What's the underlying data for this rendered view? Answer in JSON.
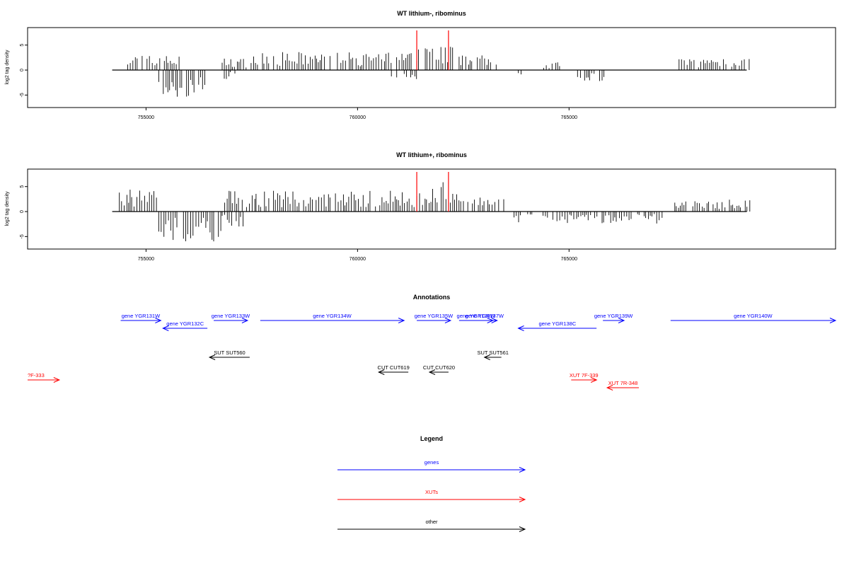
{
  "colors": {
    "gene": "#0000ff",
    "xut": "#ff0000",
    "other": "#000000",
    "highlight": "#ff0000"
  },
  "chart_data": [
    {
      "type": "bar",
      "title": "WT lithium-, ribominus",
      "ylabel": "log2 tag density",
      "x_ticks": [
        755000,
        760000,
        765000
      ],
      "x_tick_labels": [
        "755000",
        "760000",
        "765000"
      ],
      "y_ticks": [
        -5,
        0,
        5
      ],
      "y_tick_labels": [
        "-5",
        "0",
        "5"
      ],
      "xlim": [
        752200,
        771300
      ],
      "ylim": [
        -7.5,
        8.5
      ],
      "highlight_x": [
        761400,
        762150
      ],
      "positive_regions": [
        {
          "start": 754500,
          "end": 755800,
          "level": 2.5
        },
        {
          "start": 756800,
          "end": 757400,
          "level": 2.0
        },
        {
          "start": 757450,
          "end": 761350,
          "level": 3.0
        },
        {
          "start": 761400,
          "end": 762250,
          "level": 4.5
        },
        {
          "start": 762400,
          "end": 763400,
          "level": 2.5
        },
        {
          "start": 764400,
          "end": 764800,
          "level": 1.5
        },
        {
          "start": 767600,
          "end": 769300,
          "level": 2.0
        }
      ],
      "negative_regions": [
        {
          "start": 755300,
          "end": 756400,
          "level": -4.5
        },
        {
          "start": 756850,
          "end": 757200,
          "level": -1.5
        },
        {
          "start": 760800,
          "end": 761400,
          "level": -1.5
        },
        {
          "start": 763800,
          "end": 763900,
          "level": -1.5
        },
        {
          "start": 765200,
          "end": 765850,
          "level": -2.0
        }
      ]
    },
    {
      "type": "bar",
      "title": "WT lithium+, ribominus",
      "ylabel": "log2 tag density",
      "x_ticks": [
        755000,
        760000,
        765000
      ],
      "x_tick_labels": [
        "755000",
        "760000",
        "765000"
      ],
      "y_ticks": [
        -5,
        0,
        5
      ],
      "y_tick_labels": [
        "-5",
        "0",
        "5"
      ],
      "xlim": [
        752200,
        771300
      ],
      "ylim": [
        -7.5,
        8.5
      ],
      "highlight_x": [
        761400,
        762150
      ],
      "positive_regions": [
        {
          "start": 754300,
          "end": 755300,
          "level": 4.0
        },
        {
          "start": 756800,
          "end": 757600,
          "level": 3.5
        },
        {
          "start": 757600,
          "end": 761350,
          "level": 3.5
        },
        {
          "start": 761400,
          "end": 762250,
          "level": 5.0
        },
        {
          "start": 762250,
          "end": 763500,
          "level": 3.0
        },
        {
          "start": 767500,
          "end": 769300,
          "level": 2.0
        }
      ],
      "negative_regions": [
        {
          "start": 755300,
          "end": 756800,
          "level": -5.0
        },
        {
          "start": 756800,
          "end": 757300,
          "level": -2.5
        },
        {
          "start": 763700,
          "end": 767200,
          "level": -2.0
        }
      ]
    }
  ],
  "annotations": {
    "title": "Annotations",
    "features": [
      {
        "label": "gene YGR131W",
        "type": "gene",
        "start": 754400,
        "end": 755350,
        "strand": "+",
        "row": 0
      },
      {
        "label": "gene YGR132C",
        "type": "gene",
        "start": 755400,
        "end": 756450,
        "strand": "-",
        "row": 1
      },
      {
        "label": "gene YGR133W",
        "type": "gene",
        "start": 756600,
        "end": 757400,
        "strand": "+",
        "row": 0
      },
      {
        "label": "gene YGR134W",
        "type": "gene",
        "start": 757700,
        "end": 761100,
        "strand": "+",
        "row": 0
      },
      {
        "label": "gene YGR135W",
        "type": "gene",
        "start": 761400,
        "end": 762200,
        "strand": "+",
        "row": 0
      },
      {
        "label": "gene YGR136W",
        "type": "gene",
        "start": 762400,
        "end": 763200,
        "strand": "+",
        "row": 0
      },
      {
        "label": "gene YGR137W",
        "type": "gene",
        "start": 762700,
        "end": 763300,
        "strand": "+",
        "row": 0
      },
      {
        "label": "gene YGR138C",
        "type": "gene",
        "start": 763800,
        "end": 765650,
        "strand": "-",
        "row": 1
      },
      {
        "label": "gene YGR139W",
        "type": "gene",
        "start": 765800,
        "end": 766300,
        "strand": "+",
        "row": 0
      },
      {
        "label": "gene YGR140W",
        "type": "gene",
        "start": 767400,
        "end": 771300,
        "strand": "+",
        "row": 0
      },
      {
        "label": "SUT SUT560",
        "type": "other",
        "start": 756500,
        "end": 757450,
        "strand": "-",
        "row": 2
      },
      {
        "label": "SUT SUT561",
        "type": "other",
        "start": 763000,
        "end": 763400,
        "strand": "-",
        "row": 2
      },
      {
        "label": "CUT CUT619",
        "type": "other",
        "start": 760500,
        "end": 761200,
        "strand": "-",
        "row": 3
      },
      {
        "label": "CUT CUT620",
        "type": "other",
        "start": 761700,
        "end": 762150,
        "strand": "-",
        "row": 3
      },
      {
        "label": "?F-333",
        "type": "xut",
        "start": 752200,
        "end": 752950,
        "strand": "+",
        "row": 4
      },
      {
        "label": "XUT 7F-339",
        "type": "xut",
        "start": 765050,
        "end": 765650,
        "strand": "+",
        "row": 4
      },
      {
        "label": "XUT 7R-348",
        "type": "xut",
        "start": 765900,
        "end": 766650,
        "strand": "-",
        "row": 5
      }
    ]
  },
  "legend": {
    "title": "Legend",
    "items": [
      {
        "label": "genes",
        "type": "gene"
      },
      {
        "label": "XUTs",
        "type": "xut"
      },
      {
        "label": "other",
        "type": "other"
      }
    ]
  }
}
